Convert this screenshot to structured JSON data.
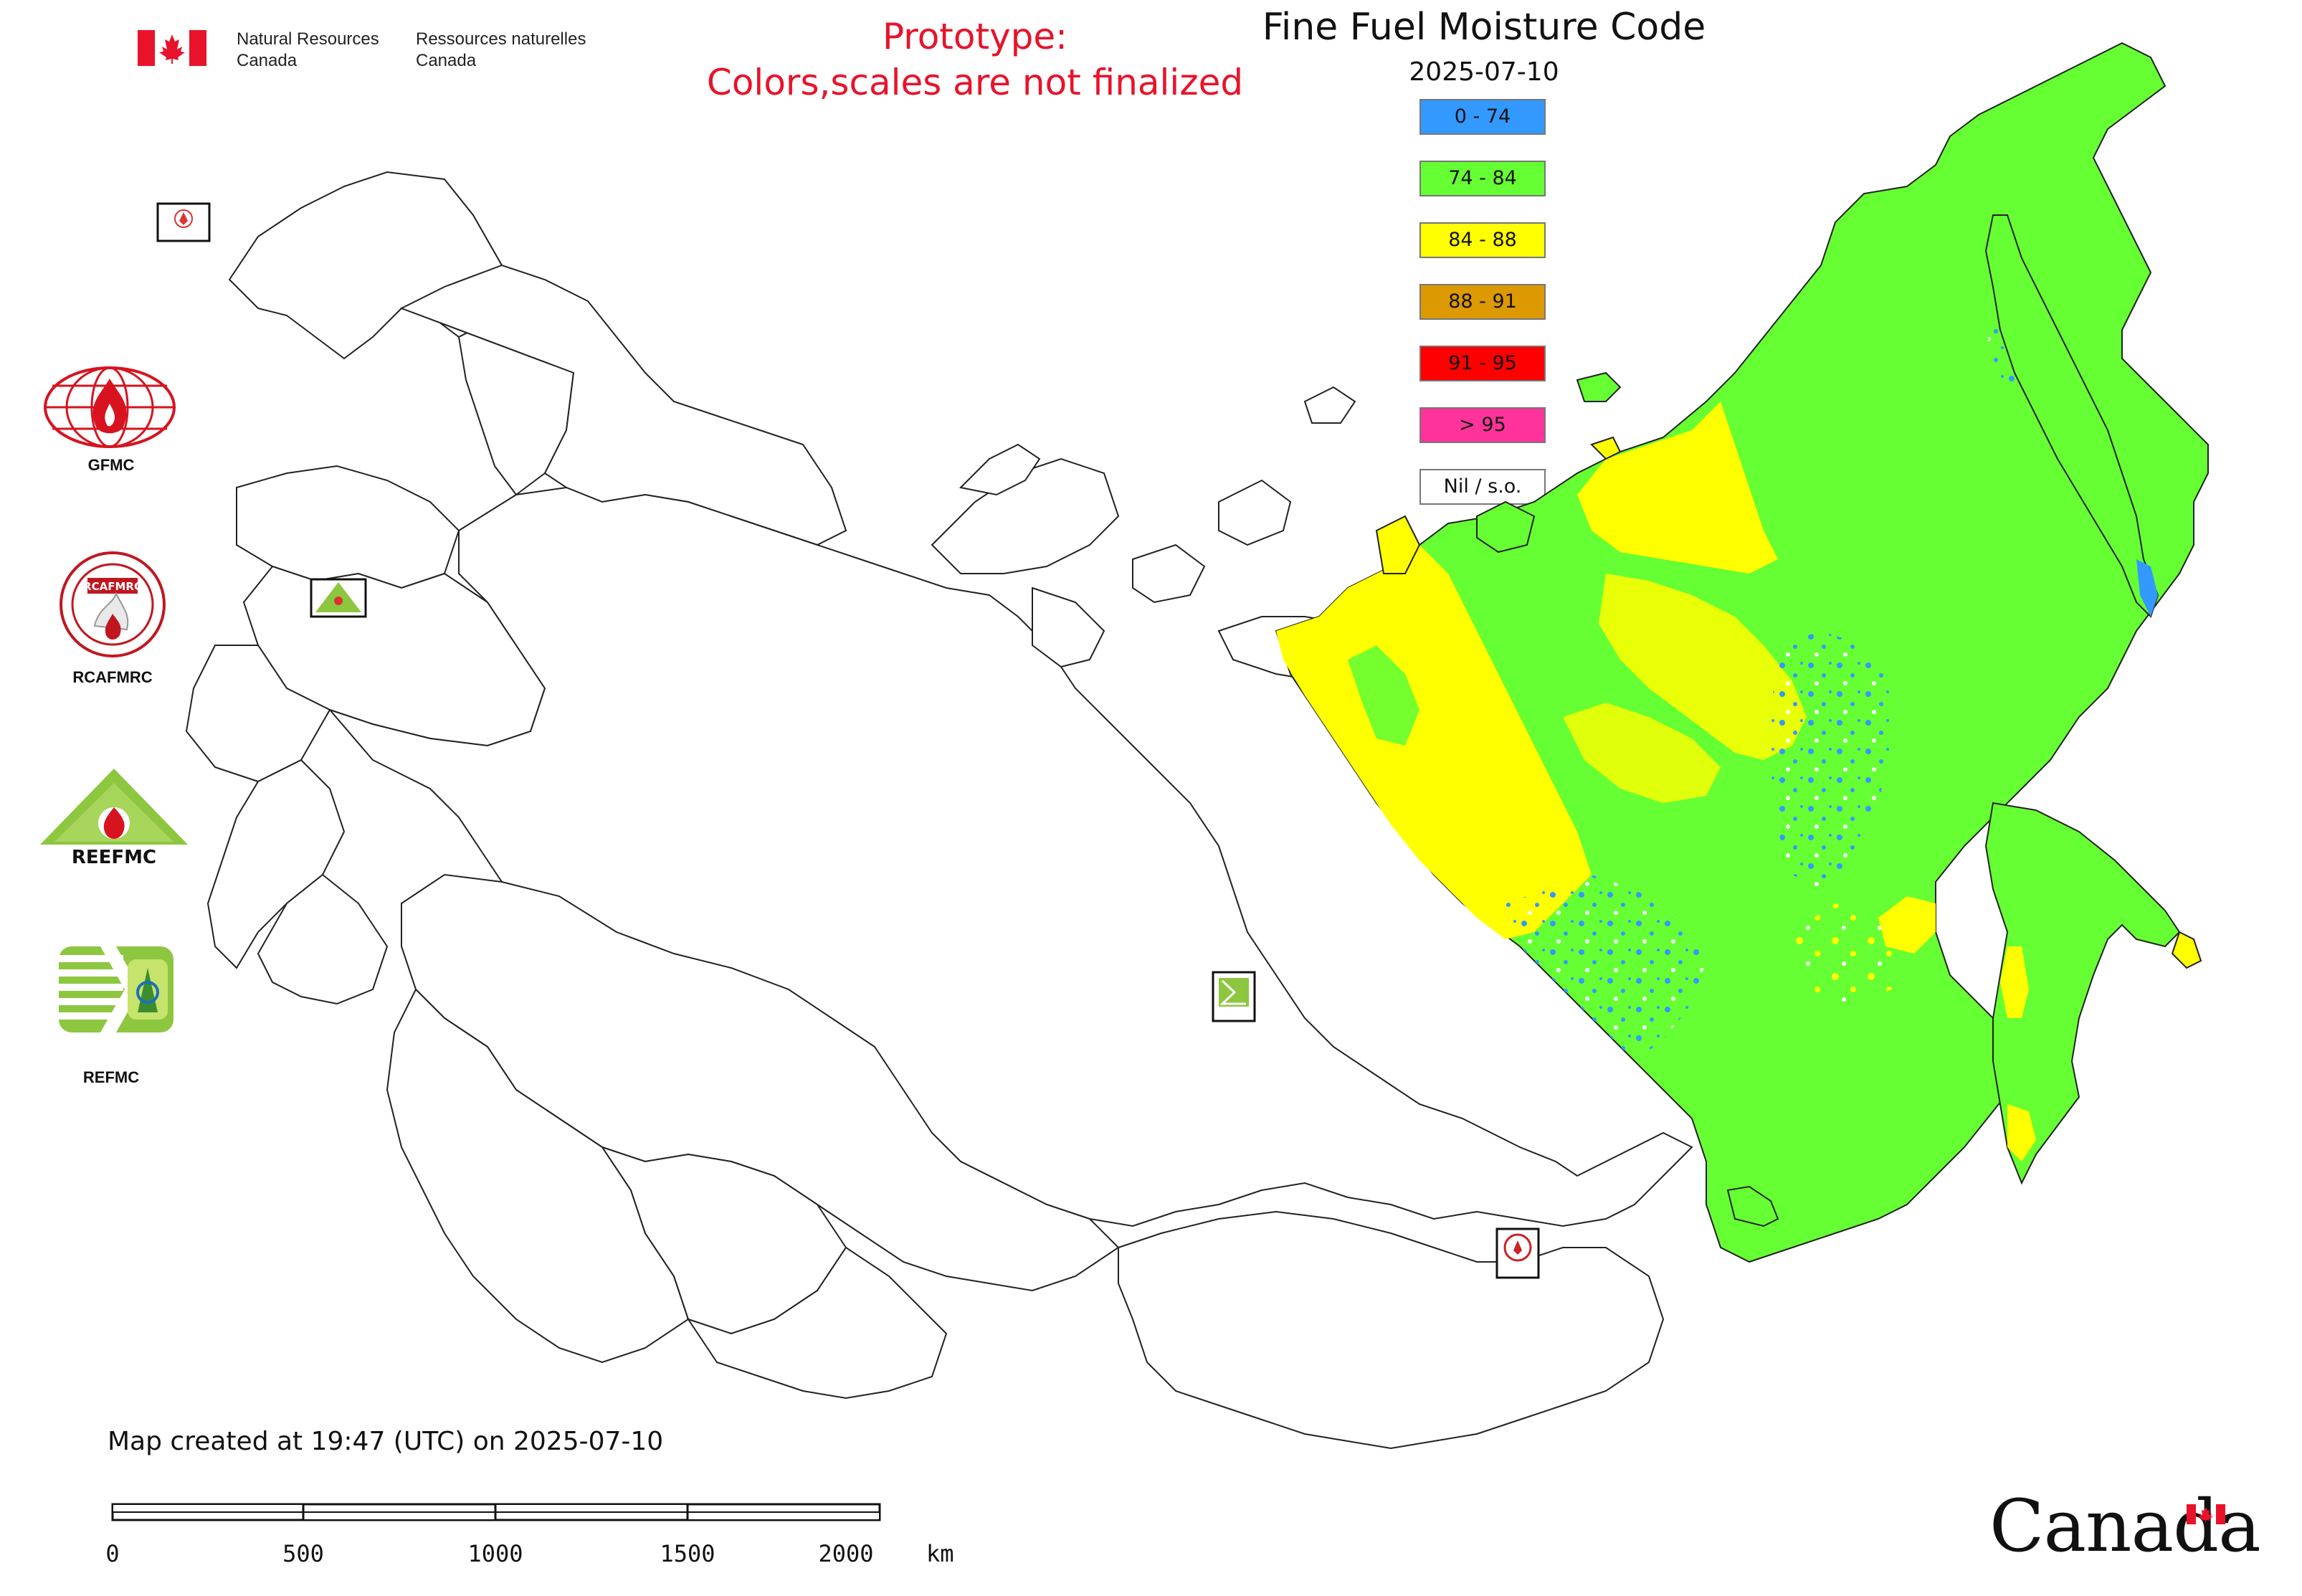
{
  "header": {
    "agency_en": "Natural Resources\nCanada",
    "agency_fr": "Ressources naturelles\nCanada",
    "prototype_line1": "Prototype:",
    "prototype_line2": "Colors,scales are not finalized",
    "title": "Fine Fuel Moisture Code",
    "date": "2025-07-10"
  },
  "legend": [
    {
      "label": "0 - 74",
      "color": "#3399ff"
    },
    {
      "label": "74 - 84",
      "color": "#66ff33"
    },
    {
      "label": "84 - 88",
      "color": "#ffff00"
    },
    {
      "label": "88 - 91",
      "color": "#dd9900"
    },
    {
      "label": "91 - 95",
      "color": "#ff0000"
    },
    {
      "label": "> 95",
      "color": "#ff3399"
    },
    {
      "label": "Nil / s.o.",
      "color": "#ffffff"
    }
  ],
  "side_logos": [
    {
      "label": "GFMC",
      "icon": "gfmc-globe-flame-logo"
    },
    {
      "label": "RCAFMRC",
      "icon": "rcafmrc-seal-logo"
    },
    {
      "label": "",
      "icon": "reefmc-triangle-logo",
      "logo_text": "REEFMC"
    },
    {
      "label": "REFMC",
      "icon": "refmc-sigma-logo"
    }
  ],
  "map_markers": [
    {
      "label": "GFMC",
      "icon": "gfmc-marker"
    },
    {
      "label": "REEFMC",
      "icon": "reefmc-marker"
    },
    {
      "label": "REFMC",
      "icon": "refmc-marker"
    },
    {
      "label": "RCAFMRC",
      "icon": "rcafmrc-marker"
    }
  ],
  "footer": {
    "created": "Map created at 19:47 (UTC) on 2025-07-10",
    "scale_ticks": [
      "0",
      "500",
      "1000",
      "1500",
      "2000"
    ],
    "scale_unit": "km",
    "wordmark": "Canada"
  }
}
